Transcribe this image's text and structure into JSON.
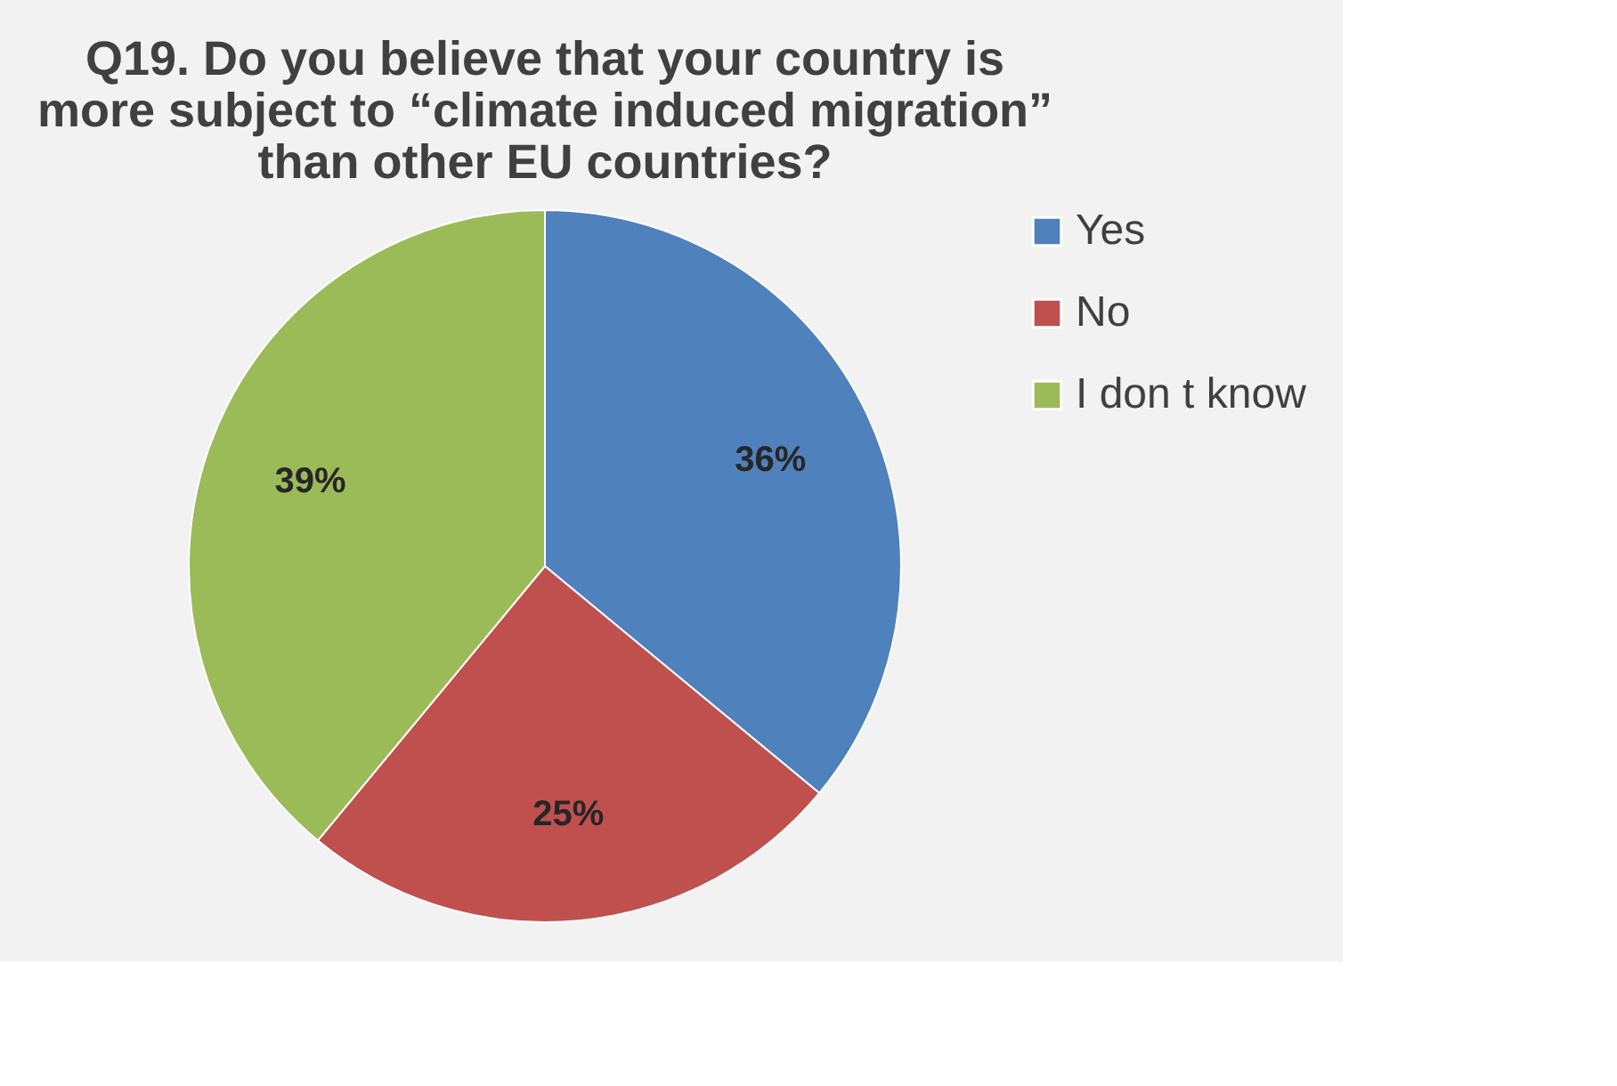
{
  "chart_data": {
    "type": "pie",
    "title": [
      "Q19. Do you believe that your country is",
      "more subject to “climate induced migration”",
      "than other EU countries?"
    ],
    "categories": [
      "Yes",
      "No",
      "I don t know"
    ],
    "values": [
      36,
      25,
      39
    ],
    "colors": [
      "#4f81bd",
      "#c0504d",
      "#9bbb59"
    ],
    "value_labels": [
      "36%",
      "25%",
      "39%"
    ],
    "legend": "right"
  }
}
